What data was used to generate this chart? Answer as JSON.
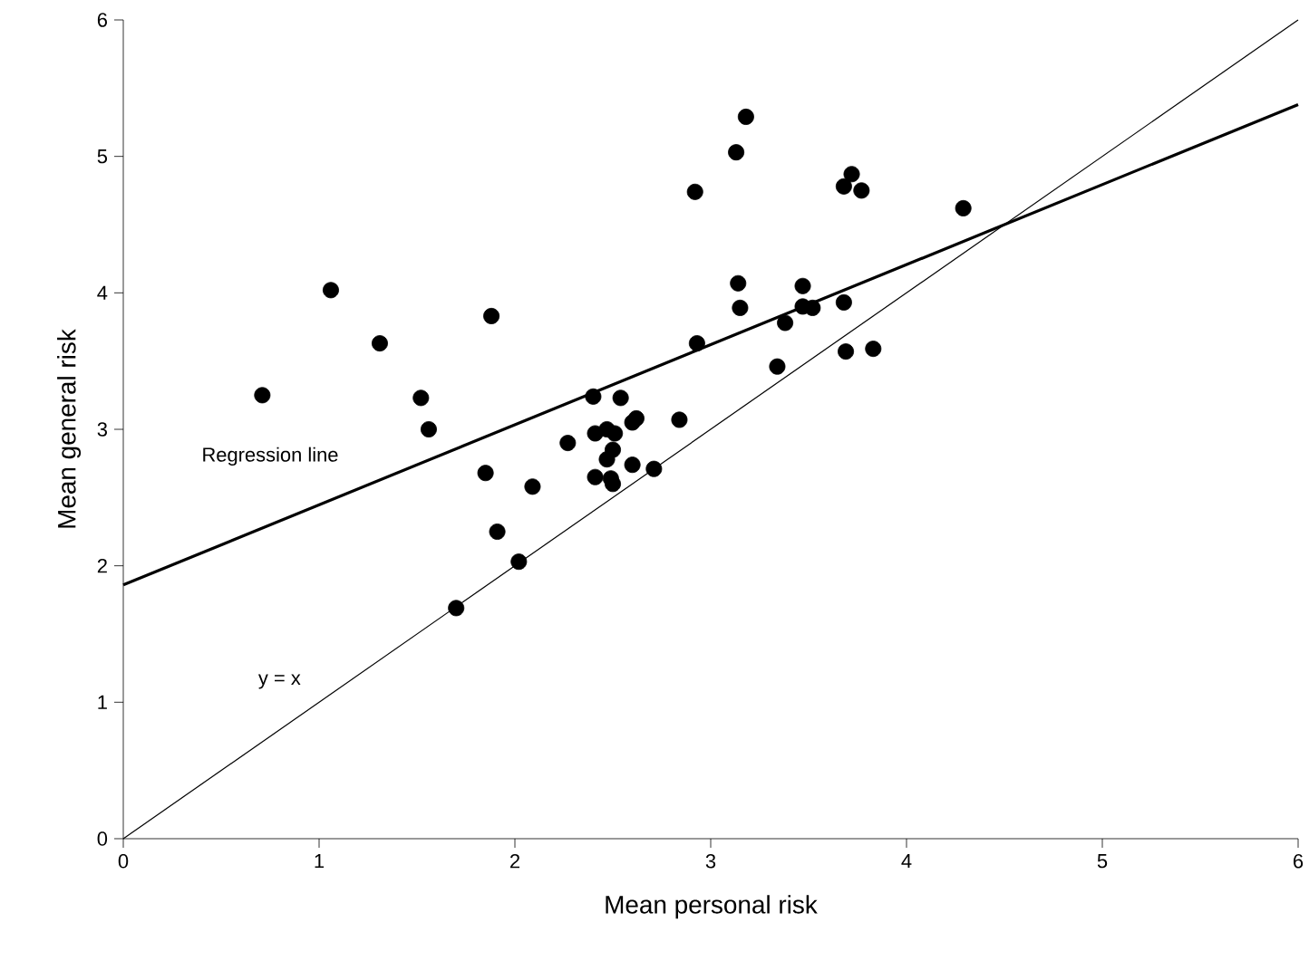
{
  "chart_data": {
    "type": "scatter",
    "xlabel": "Mean personal risk",
    "ylabel": "Mean general risk",
    "xlim": [
      0,
      6
    ],
    "ylim": [
      0,
      6
    ],
    "xticks": [
      0,
      1,
      2,
      3,
      4,
      5,
      6
    ],
    "yticks": [
      0,
      1,
      2,
      3,
      4,
      5,
      6
    ],
    "series": [
      {
        "color": "#000000",
        "marker": "circle",
        "x": [
          0.71,
          1.06,
          1.31,
          1.52,
          1.56,
          1.88,
          1.85,
          1.91,
          2.02,
          1.7,
          2.09,
          2.27,
          2.4,
          2.41,
          2.41,
          2.47,
          2.47,
          2.5,
          2.51,
          2.49,
          2.5,
          2.54,
          2.6,
          2.62,
          2.6,
          2.71,
          2.84,
          2.93,
          2.92,
          3.13,
          3.18,
          3.14,
          3.15,
          3.34,
          3.38,
          3.47,
          3.47,
          3.52,
          3.68,
          3.72,
          3.77,
          3.68,
          3.69,
          3.83,
          4.29
        ],
        "values": [
          3.25,
          4.02,
          3.63,
          3.23,
          3.0,
          3.83,
          2.68,
          2.25,
          2.03,
          1.69,
          2.58,
          2.9,
          3.24,
          2.97,
          2.65,
          3.0,
          2.78,
          2.85,
          2.97,
          2.64,
          2.6,
          3.23,
          3.05,
          3.08,
          2.74,
          2.71,
          3.07,
          3.63,
          4.74,
          5.03,
          5.29,
          4.07,
          3.89,
          3.46,
          3.78,
          4.05,
          3.9,
          3.89,
          4.78,
          4.87,
          4.75,
          3.93,
          3.57,
          3.59,
          4.62
        ]
      },
      {
        "type": "line",
        "color": "#000000",
        "marker": "none",
        "x": [
          0,
          6
        ],
        "values": [
          1.86,
          5.38
        ]
      },
      {
        "type": "line",
        "color": "#000000",
        "marker": "none",
        "x": [
          0,
          6
        ],
        "values": [
          0,
          6
        ]
      }
    ],
    "annotations": [
      "Regression line",
      "y = x"
    ]
  }
}
